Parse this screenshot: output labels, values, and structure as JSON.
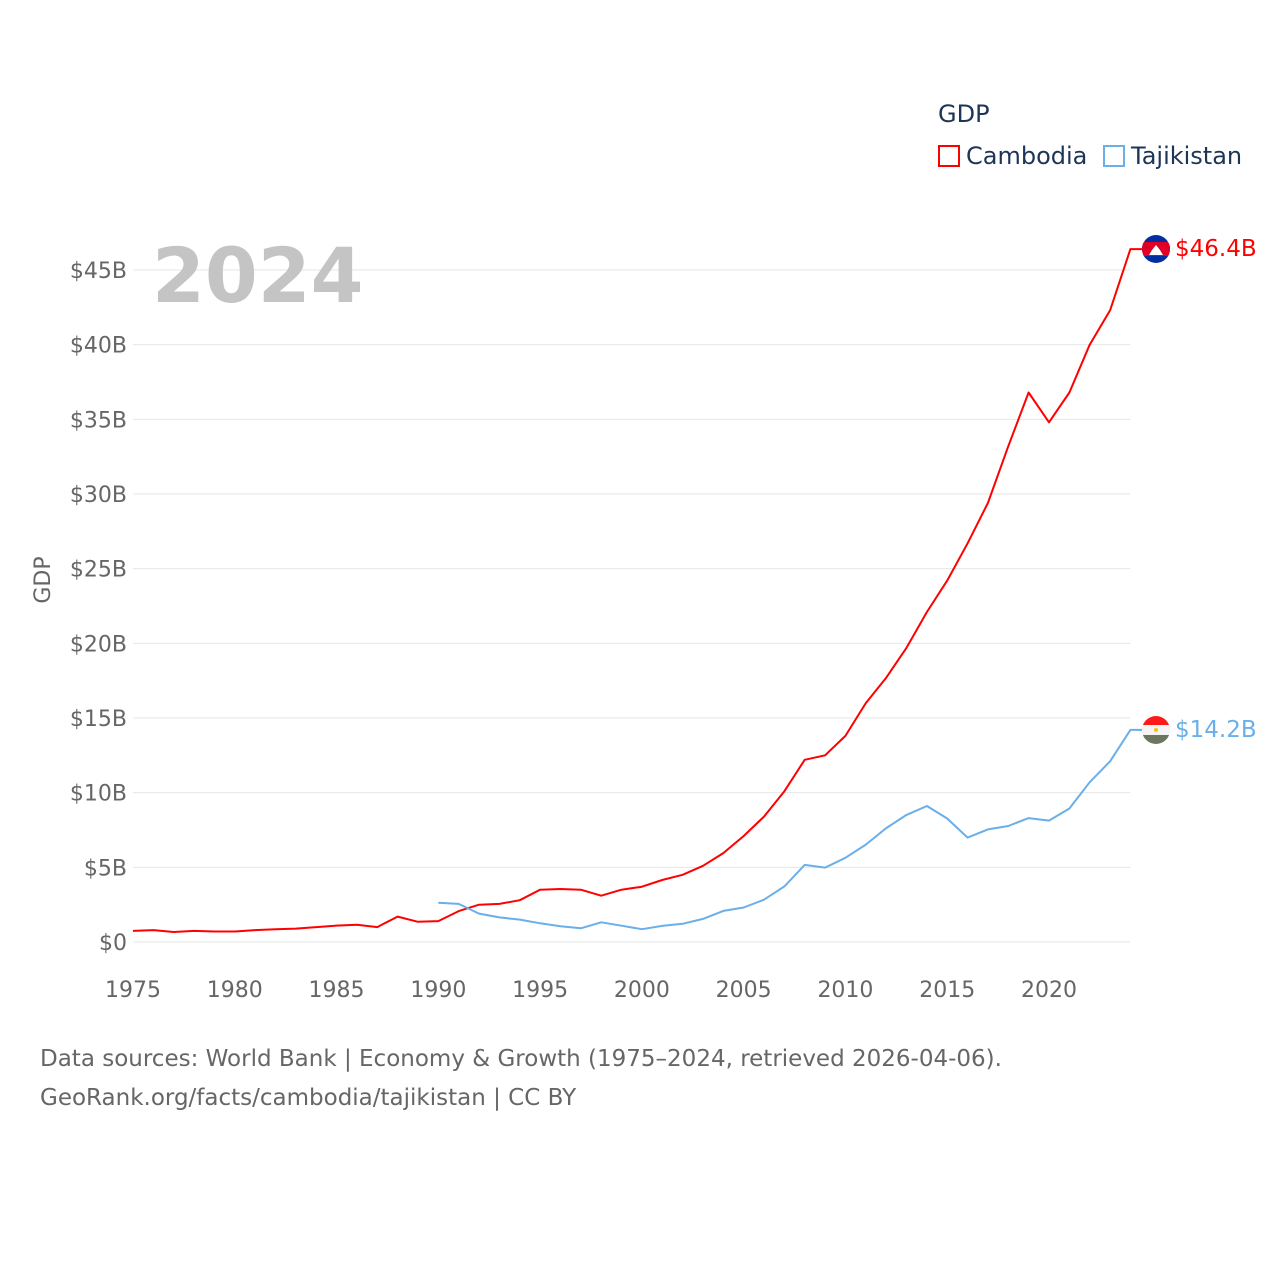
{
  "chart_data": {
    "type": "line",
    "title": "GDP",
    "big_year_label": "2024",
    "ylabel": "GDP",
    "xlabel": "",
    "xlim": [
      1975,
      2024
    ],
    "ylim": [
      0,
      45
    ],
    "y_unit": "billion USD",
    "x_ticks": [
      "1975",
      "1980",
      "1985",
      "1990",
      "1995",
      "2000",
      "2005",
      "2010",
      "2015",
      "2020"
    ],
    "y_ticks": [
      {
        "value": 0,
        "label": "$0"
      },
      {
        "value": 5,
        "label": "$5B"
      },
      {
        "value": 10,
        "label": "$10B"
      },
      {
        "value": 15,
        "label": "$15B"
      },
      {
        "value": 20,
        "label": "$20B"
      },
      {
        "value": 25,
        "label": "$25B"
      },
      {
        "value": 30,
        "label": "$30B"
      },
      {
        "value": 35,
        "label": "$35B"
      },
      {
        "value": 40,
        "label": "$40B"
      },
      {
        "value": 45,
        "label": "$45B"
      }
    ],
    "grid": true,
    "legend_placement": "top-right",
    "series": [
      {
        "name": "Cambodia",
        "color": "#ff0000",
        "end_label": "$46.4B",
        "x": [
          1975,
          1976,
          1977,
          1978,
          1979,
          1980,
          1981,
          1982,
          1983,
          1984,
          1985,
          1986,
          1987,
          1988,
          1989,
          1990,
          1991,
          1992,
          1993,
          1994,
          1995,
          1996,
          1997,
          1998,
          1999,
          2000,
          2001,
          2002,
          2003,
          2004,
          2005,
          2006,
          2007,
          2008,
          2009,
          2010,
          2011,
          2012,
          2013,
          2014,
          2015,
          2016,
          2017,
          2018,
          2019,
          2020,
          2021,
          2022,
          2023,
          2024
        ],
        "values": [
          0.74,
          0.8,
          0.67,
          0.74,
          0.7,
          0.7,
          0.8,
          0.85,
          0.9,
          1.0,
          1.1,
          1.15,
          1.0,
          1.7,
          1.35,
          1.4,
          2.07,
          2.5,
          2.55,
          2.8,
          3.5,
          3.55,
          3.5,
          3.1,
          3.5,
          3.7,
          4.15,
          4.5,
          5.1,
          5.95,
          7.1,
          8.4,
          10.1,
          12.2,
          12.5,
          13.8,
          16.0,
          17.7,
          19.7,
          22.1,
          24.2,
          26.7,
          29.4,
          33.2,
          36.8,
          34.8,
          36.8,
          40.0,
          42.3,
          46.4
        ]
      },
      {
        "name": "Tajikistan",
        "color": "#6aaeea",
        "end_label": "$14.2B",
        "x": [
          1990,
          1991,
          1992,
          1993,
          1994,
          1995,
          1996,
          1997,
          1998,
          1999,
          2000,
          2001,
          2002,
          2003,
          2004,
          2005,
          2006,
          2007,
          2008,
          2009,
          2010,
          2011,
          2012,
          2013,
          2014,
          2015,
          2016,
          2017,
          2018,
          2019,
          2020,
          2021,
          2022,
          2023,
          2024
        ],
        "values": [
          2.63,
          2.55,
          1.9,
          1.65,
          1.5,
          1.25,
          1.05,
          0.92,
          1.32,
          1.09,
          0.86,
          1.08,
          1.22,
          1.55,
          2.08,
          2.31,
          2.83,
          3.72,
          5.16,
          4.98,
          5.64,
          6.52,
          7.63,
          8.51,
          9.11,
          8.27,
          6.99,
          7.54,
          7.77,
          8.3,
          8.13,
          8.94,
          10.7,
          12.1,
          14.2
        ]
      }
    ]
  },
  "footer": {
    "line1": "Data sources: World Bank | Economy & Growth (1975–2024, retrieved 2026-04-06).",
    "line2": "GeoRank.org/facts/cambodia/tajikistan | CC BY"
  }
}
